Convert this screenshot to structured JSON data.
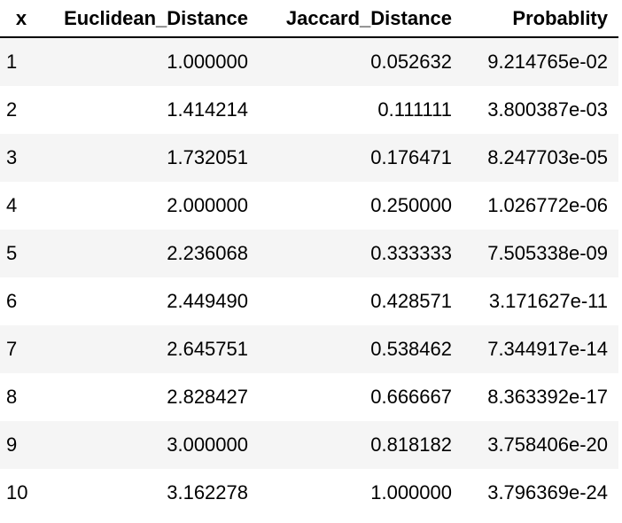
{
  "table": {
    "columns": [
      "x",
      "Euclidean_Distance",
      "Jaccard_Distance",
      "Probablity"
    ],
    "rows": [
      [
        "1",
        "1.000000",
        "0.052632",
        "9.214765e-02"
      ],
      [
        "2",
        "1.414214",
        "0.111111",
        "3.800387e-03"
      ],
      [
        "3",
        "1.732051",
        "0.176471",
        "8.247703e-05"
      ],
      [
        "4",
        "2.000000",
        "0.250000",
        "1.026772e-06"
      ],
      [
        "5",
        "2.236068",
        "0.333333",
        "7.505338e-09"
      ],
      [
        "6",
        "2.449490",
        "0.428571",
        "3.171627e-11"
      ],
      [
        "7",
        "2.645751",
        "0.538462",
        "7.344917e-14"
      ],
      [
        "8",
        "2.828427",
        "0.666667",
        "8.363392e-17"
      ],
      [
        "9",
        "3.000000",
        "0.818182",
        "3.758406e-20"
      ],
      [
        "10",
        "3.162278",
        "1.000000",
        "3.796369e-24"
      ]
    ]
  }
}
